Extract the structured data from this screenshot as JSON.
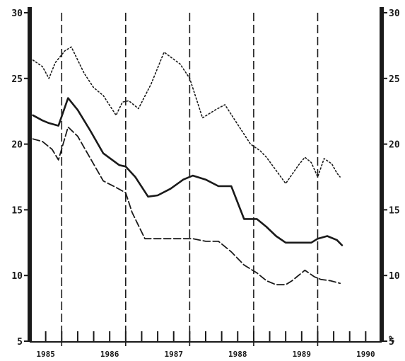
{
  "chart_data": {
    "type": "line",
    "title": "",
    "xlabel": "",
    "ylabel": "",
    "right_axis_unit": "%",
    "ylim": [
      5,
      30
    ],
    "yticks": [
      5,
      10,
      15,
      20,
      25,
      30
    ],
    "xlim": [
      1985.0,
      1990.5
    ],
    "year_labels": [
      {
        "year": 1985,
        "label": "1985"
      },
      {
        "year": 1986,
        "label": "1986"
      },
      {
        "year": 1987,
        "label": "1987"
      },
      {
        "year": 1988,
        "label": "1988"
      },
      {
        "year": 1989,
        "label": "1989"
      },
      {
        "year": 1990,
        "label": "1990"
      }
    ],
    "year_boundaries": [
      1985.5,
      1986.5,
      1987.5,
      1988.5,
      1989.5
    ],
    "quarter_ticks": [
      1985.0,
      1985.25,
      1985.5,
      1985.75,
      1986.0,
      1986.25,
      1986.5,
      1986.75,
      1987.0,
      1987.25,
      1987.5,
      1987.75,
      1988.0,
      1988.25,
      1988.5,
      1988.75,
      1989.0,
      1989.25,
      1989.5,
      1989.75,
      1990.0,
      1990.25,
      1990.5
    ],
    "series": [
      {
        "style": "dotted",
        "x": [
          1985.05,
          1985.2,
          1985.3,
          1985.4,
          1985.55,
          1985.65,
          1985.85,
          1986.0,
          1986.15,
          1986.35,
          1986.45,
          1986.55,
          1986.7,
          1986.9,
          1987.1,
          1987.35,
          1987.5,
          1987.7,
          1987.9,
          1988.05,
          1988.25,
          1988.45,
          1988.6,
          1988.7,
          1988.85,
          1989.0,
          1989.2,
          1989.3,
          1989.4,
          1989.5,
          1989.6,
          1989.72,
          1989.8,
          1989.85
        ],
        "values": [
          26.4,
          25.9,
          25.0,
          26.2,
          27.1,
          27.4,
          25.4,
          24.3,
          23.7,
          22.2,
          23.2,
          23.3,
          22.7,
          24.6,
          27.0,
          26.1,
          25.0,
          22.0,
          22.6,
          23.0,
          21.5,
          20.0,
          19.5,
          19.0,
          18.0,
          17.0,
          18.4,
          19.0,
          18.6,
          17.5,
          18.9,
          18.5,
          17.8,
          17.5
        ]
      },
      {
        "style": "solid",
        "x": [
          1985.05,
          1985.2,
          1985.3,
          1985.45,
          1985.6,
          1985.75,
          1985.95,
          1986.15,
          1986.4,
          1986.5,
          1986.65,
          1986.85,
          1987.0,
          1987.2,
          1987.4,
          1987.55,
          1987.75,
          1987.95,
          1988.15,
          1988.35,
          1988.55,
          1988.7,
          1988.85,
          1989.0,
          1989.15,
          1989.3,
          1989.4,
          1989.5,
          1989.65,
          1989.8,
          1989.88
        ],
        "values": [
          22.2,
          21.8,
          21.6,
          21.4,
          23.5,
          22.6,
          21.0,
          19.3,
          18.4,
          18.3,
          17.5,
          16.0,
          16.1,
          16.6,
          17.3,
          17.6,
          17.3,
          16.8,
          16.8,
          14.3,
          14.3,
          13.7,
          13.0,
          12.5,
          12.5,
          12.5,
          12.5,
          12.8,
          13.0,
          12.7,
          12.3
        ]
      },
      {
        "style": "dashed",
        "x": [
          1985.05,
          1985.2,
          1985.35,
          1985.45,
          1985.6,
          1985.75,
          1985.95,
          1986.15,
          1986.35,
          1986.5,
          1986.6,
          1986.8,
          1987.0,
          1987.3,
          1987.55,
          1987.75,
          1987.95,
          1988.15,
          1988.35,
          1988.55,
          1988.7,
          1988.85,
          1989.0,
          1989.1,
          1989.3,
          1989.45,
          1989.55,
          1989.7,
          1989.85
        ],
        "values": [
          20.4,
          20.2,
          19.6,
          18.8,
          21.3,
          20.6,
          18.9,
          17.2,
          16.7,
          16.3,
          14.8,
          12.8,
          12.8,
          12.8,
          12.8,
          12.6,
          12.6,
          11.8,
          10.8,
          10.2,
          9.6,
          9.3,
          9.3,
          9.6,
          10.4,
          9.9,
          9.7,
          9.6,
          9.4
        ]
      }
    ],
    "grid": false,
    "legend": "none"
  }
}
